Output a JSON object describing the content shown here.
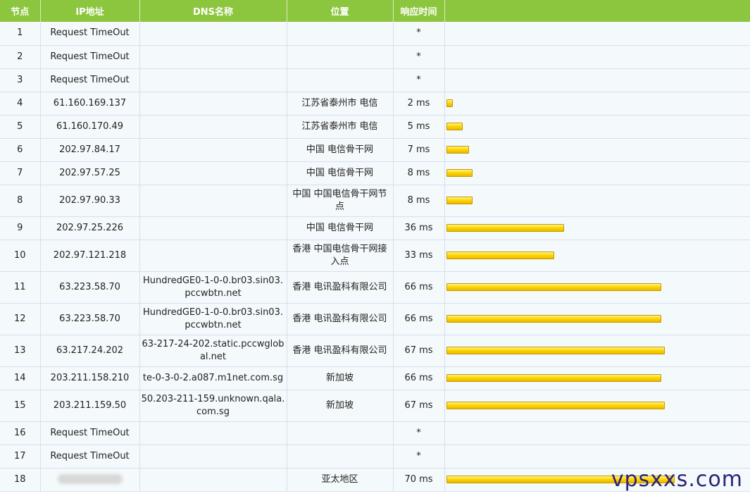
{
  "headers": {
    "hop": "节点",
    "ip": "IP地址",
    "dns": "DNS名称",
    "location": "位置",
    "time": "响应时间"
  },
  "rows": [
    {
      "hop": "1",
      "ip": "Request TimeOut",
      "dns": "",
      "location": "",
      "time": "*",
      "ms": 0
    },
    {
      "hop": "2",
      "ip": "Request TimeOut",
      "dns": "",
      "location": "",
      "time": "*",
      "ms": 0
    },
    {
      "hop": "3",
      "ip": "Request TimeOut",
      "dns": "",
      "location": "",
      "time": "*",
      "ms": 0
    },
    {
      "hop": "4",
      "ip": "61.160.169.137",
      "dns": "",
      "location": "江苏省泰州市 电信",
      "time": "2 ms",
      "ms": 2
    },
    {
      "hop": "5",
      "ip": "61.160.170.49",
      "dns": "",
      "location": "江苏省泰州市 电信",
      "time": "5 ms",
      "ms": 5
    },
    {
      "hop": "6",
      "ip": "202.97.84.17",
      "dns": "",
      "location": "中国 电信骨干网",
      "time": "7 ms",
      "ms": 7
    },
    {
      "hop": "7",
      "ip": "202.97.57.25",
      "dns": "",
      "location": "中国 电信骨干网",
      "time": "8 ms",
      "ms": 8
    },
    {
      "hop": "8",
      "ip": "202.97.90.33",
      "dns": "",
      "location": "中国 中国电信骨干网节点",
      "time": "8 ms",
      "ms": 8
    },
    {
      "hop": "9",
      "ip": "202.97.25.226",
      "dns": "",
      "location": "中国 电信骨干网",
      "time": "36 ms",
      "ms": 36
    },
    {
      "hop": "10",
      "ip": "202.97.121.218",
      "dns": "",
      "location": "香港 中国电信骨干网接入点",
      "time": "33 ms",
      "ms": 33
    },
    {
      "hop": "11",
      "ip": "63.223.58.70",
      "dns": "HundredGE0-1-0-0.br03.sin03.pccwbtn.net",
      "location": "香港 电讯盈科有限公司",
      "time": "66 ms",
      "ms": 66
    },
    {
      "hop": "12",
      "ip": "63.223.58.70",
      "dns": "HundredGE0-1-0-0.br03.sin03.pccwbtn.net",
      "location": "香港 电讯盈科有限公司",
      "time": "66 ms",
      "ms": 66
    },
    {
      "hop": "13",
      "ip": "63.217.24.202",
      "dns": "63-217-24-202.static.pccwglobal.net",
      "location": "香港 电讯盈科有限公司",
      "time": "67 ms",
      "ms": 67
    },
    {
      "hop": "14",
      "ip": "203.211.158.210",
      "dns": "te-0-3-0-2.a087.m1net.com.sg",
      "location": "新加坡",
      "time": "66 ms",
      "ms": 66
    },
    {
      "hop": "15",
      "ip": "203.211.159.50",
      "dns": "50.203-211-159.unknown.qala.com.sg",
      "location": "新加坡",
      "time": "67 ms",
      "ms": 67
    },
    {
      "hop": "16",
      "ip": "Request TimeOut",
      "dns": "",
      "location": "",
      "time": "*",
      "ms": 0
    },
    {
      "hop": "17",
      "ip": "Request TimeOut",
      "dns": "",
      "location": "",
      "time": "*",
      "ms": 0
    },
    {
      "hop": "18",
      "ip": "",
      "ip_blurred": true,
      "dns": "",
      "location": "亚太地区",
      "time": "70 ms",
      "ms": 70
    }
  ],
  "bar_scale_max_ms": 70,
  "watermark": "vpsxxs.com",
  "colors": {
    "header_bg": "#8cc63e",
    "cell_bg": "#f4f9fb",
    "bar": "#ffd800",
    "watermark": "#2e2378"
  }
}
